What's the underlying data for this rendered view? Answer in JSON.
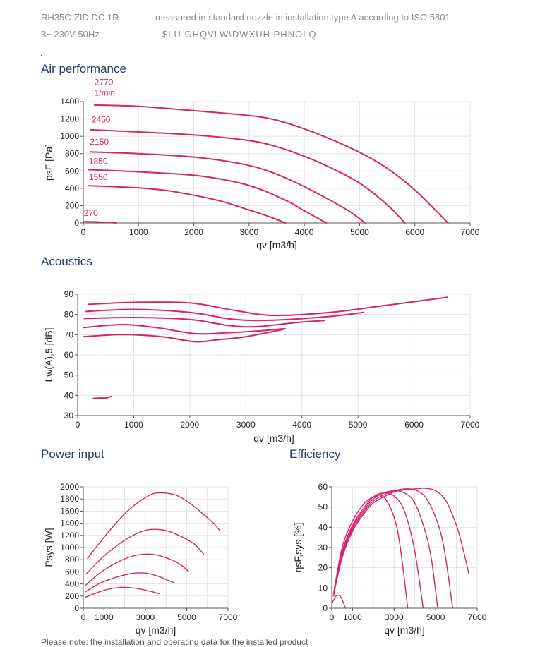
{
  "header": {
    "model": "RH35C-ZID.DC.1R",
    "supply": "3~ 230V 50Hz",
    "note1": "measured in standard nozzle in installation type A according to ISO 5801",
    "note2": "$LU GHQVLW\\DWXUH PHNOLQ"
  },
  "footnote": "Please note: the installation and operating data for the installed product",
  "colors": {
    "curve": "#d6246e",
    "grid": "#e3e3e3",
    "axis": "#555555"
  },
  "chart_data": [
    {
      "id": "air",
      "type": "line",
      "title": "Air performance",
      "xlabel": "qv [m3/h]",
      "ylabel": "psF [Pa]",
      "xlim": [
        0,
        7000
      ],
      "ylim": [
        0,
        1400
      ],
      "xticks": [
        0,
        1000,
        2000,
        3000,
        4000,
        5000,
        6000,
        7000
      ],
      "yticks": [
        0,
        200,
        400,
        600,
        800,
        1000,
        1200,
        1400
      ],
      "curve_labels": [
        {
          "text": "2770",
          "x": 200,
          "y": 1590
        },
        {
          "text": "1/min",
          "x": 200,
          "y": 1470
        },
        {
          "text": "2450",
          "x": 150,
          "y": 1160
        },
        {
          "text": "2150",
          "x": 120,
          "y": 905
        },
        {
          "text": "1850",
          "x": 100,
          "y": 680
        },
        {
          "text": "1550",
          "x": 100,
          "y": 495
        },
        {
          "text": "270",
          "x": 10,
          "y": 80
        }
      ],
      "series": [
        {
          "name": "2770",
          "x": [
            200,
            1000,
            2000,
            3000,
            3500,
            4000,
            4500,
            5000,
            5500,
            6000,
            6600
          ],
          "y": [
            1360,
            1345,
            1295,
            1240,
            1185,
            1085,
            960,
            815,
            630,
            380,
            0
          ]
        },
        {
          "name": "2450",
          "x": [
            130,
            1000,
            2000,
            3000,
            3500,
            4000,
            4500,
            5000,
            5500,
            5820
          ],
          "y": [
            1075,
            1050,
            1015,
            950,
            880,
            770,
            630,
            460,
            210,
            0
          ]
        },
        {
          "name": "2150",
          "x": [
            120,
            1000,
            2000,
            2800,
            3300,
            3800,
            4300,
            4800,
            5100
          ],
          "y": [
            820,
            800,
            760,
            690,
            610,
            480,
            320,
            140,
            0
          ]
        },
        {
          "name": "1850",
          "x": [
            100,
            1000,
            2000,
            2700,
            3200,
            3700,
            4000,
            4400
          ],
          "y": [
            615,
            590,
            550,
            480,
            390,
            250,
            140,
            0
          ]
        },
        {
          "name": "1550",
          "x": [
            100,
            1000,
            1500,
            2000,
            2500,
            3000,
            3400,
            3660
          ],
          "y": [
            430,
            405,
            375,
            320,
            250,
            150,
            65,
            0
          ]
        },
        {
          "name": "270",
          "x": [
            0,
            250,
            450,
            600
          ],
          "y": [
            15,
            12,
            5,
            0
          ]
        }
      ]
    },
    {
      "id": "acoustics",
      "type": "line",
      "title": "Acoustics",
      "xlabel": "qv [m3/h]",
      "ylabel": "Lw(A),5 [dB]",
      "xlim": [
        0,
        7000
      ],
      "ylim": [
        30,
        90
      ],
      "xticks": [
        0,
        1000,
        2000,
        3000,
        4000,
        5000,
        6000,
        7000
      ],
      "yticks": [
        30,
        40,
        50,
        60,
        70,
        80,
        90
      ],
      "series": [
        {
          "name": "2770",
          "x": [
            200,
            1000,
            2000,
            2800,
            3500,
            4500,
            5500,
            6600
          ],
          "y": [
            85,
            86,
            85.7,
            82,
            79.5,
            81,
            84.5,
            88.5
          ]
        },
        {
          "name": "2450",
          "x": [
            150,
            1000,
            2000,
            2800,
            3500,
            4500,
            5100
          ],
          "y": [
            81.5,
            82.5,
            81,
            77.5,
            77.2,
            79,
            81
          ]
        },
        {
          "name": "2150",
          "x": [
            120,
            1000,
            2000,
            2700,
            3200,
            3900,
            4400
          ],
          "y": [
            78,
            78.5,
            77.5,
            74.5,
            74,
            76,
            77
          ]
        },
        {
          "name": "1850",
          "x": [
            100,
            800,
            1400,
            2100,
            2700,
            3300,
            3700
          ],
          "y": [
            73.5,
            75,
            73.5,
            70.5,
            71,
            72,
            73
          ]
        },
        {
          "name": "1550",
          "x": [
            100,
            800,
            1500,
            2100,
            2500,
            3000,
            3660
          ],
          "y": [
            69,
            70,
            69,
            66.5,
            67.5,
            69,
            72.5
          ]
        },
        {
          "name": "270",
          "x": [
            280,
            400,
            500,
            600
          ],
          "y": [
            38.5,
            38.7,
            38.7,
            39.5
          ]
        }
      ]
    },
    {
      "id": "power",
      "type": "line",
      "title": "Power input",
      "xlabel": "qv [m3/h]",
      "ylabel": "Psys [W]",
      "xlim": [
        0,
        7000
      ],
      "ylim": [
        0,
        2000
      ],
      "xticks": [
        0,
        1000,
        3000,
        5000,
        7000
      ],
      "yticks": [
        0,
        200,
        400,
        600,
        800,
        1000,
        1200,
        1400,
        1600,
        1800,
        2000
      ],
      "series": [
        {
          "name": "2770",
          "x": [
            200,
            1200,
            2200,
            3200,
            3800,
            4500,
            5200,
            5800,
            6300,
            6600
          ],
          "y": [
            820,
            1250,
            1620,
            1860,
            1900,
            1860,
            1720,
            1550,
            1400,
            1280
          ]
        },
        {
          "name": "2450",
          "x": [
            130,
            1000,
            2000,
            2800,
            3400,
            4100,
            4800,
            5400,
            5820
          ],
          "y": [
            560,
            860,
            1120,
            1260,
            1300,
            1270,
            1170,
            1050,
            890
          ]
        },
        {
          "name": "2150",
          "x": [
            120,
            800,
            1600,
            2400,
            3000,
            3500,
            4100,
            4700,
            5100
          ],
          "y": [
            380,
            580,
            750,
            860,
            890,
            880,
            820,
            720,
            600
          ]
        },
        {
          "name": "1850",
          "x": [
            100,
            800,
            1600,
            2300,
            2900,
            3500,
            4100,
            4400
          ],
          "y": [
            270,
            410,
            510,
            570,
            580,
            540,
            460,
            420
          ]
        },
        {
          "name": "1550",
          "x": [
            100,
            700,
            1300,
            1900,
            2500,
            3100,
            3660
          ],
          "y": [
            180,
            260,
            320,
            345,
            330,
            290,
            240
          ]
        }
      ]
    },
    {
      "id": "efficiency",
      "type": "line",
      "title": "Efficiency",
      "xlabel": "qv [m3/h]",
      "ylabel": "ηsF,sys [%]",
      "xlim": [
        0,
        7000
      ],
      "ylim": [
        0,
        60
      ],
      "xticks": [
        0,
        1000,
        3000,
        5000,
        7000
      ],
      "yticks": [
        0,
        10,
        20,
        30,
        40,
        50,
        60
      ],
      "series": [
        {
          "name": "2770",
          "x": [
            80,
            500,
            1000,
            1500,
            2000,
            2500,
            3000,
            3500,
            4000,
            4500,
            5000,
            5500,
            6000,
            6300,
            6600
          ],
          "y": [
            6,
            25,
            38,
            46,
            52,
            55,
            57.5,
            58.5,
            59,
            59.3,
            58,
            53,
            41,
            30,
            17
          ]
        },
        {
          "name": "2450",
          "x": [
            80,
            500,
            1000,
            1500,
            2000,
            2500,
            3000,
            3500,
            4000,
            4500,
            5000,
            5400,
            5820
          ],
          "y": [
            6,
            26,
            39,
            47,
            53,
            56,
            58,
            59,
            58.5,
            55,
            45,
            30,
            0
          ]
        },
        {
          "name": "2150",
          "x": [
            80,
            500,
            1000,
            1500,
            2000,
            2500,
            3000,
            3500,
            4000,
            4500,
            4800,
            5100
          ],
          "y": [
            6,
            27,
            40,
            48,
            54,
            57,
            58,
            57,
            52,
            38,
            24,
            0
          ]
        },
        {
          "name": "1850",
          "x": [
            80,
            500,
            1000,
            1500,
            2000,
            2500,
            3000,
            3500,
            4000,
            4400
          ],
          "y": [
            6,
            28,
            41,
            49,
            55,
            57,
            55.5,
            48,
            28,
            0
          ]
        },
        {
          "name": "1550",
          "x": [
            80,
            500,
            1000,
            1500,
            2000,
            2500,
            3000,
            3300,
            3660
          ],
          "y": [
            7,
            30,
            43,
            51,
            55,
            55,
            45,
            30,
            0
          ]
        },
        {
          "name": "270",
          "x": [
            0,
            200,
            400,
            550,
            650
          ],
          "y": [
            2,
            6,
            6,
            3,
            0
          ]
        }
      ]
    }
  ]
}
